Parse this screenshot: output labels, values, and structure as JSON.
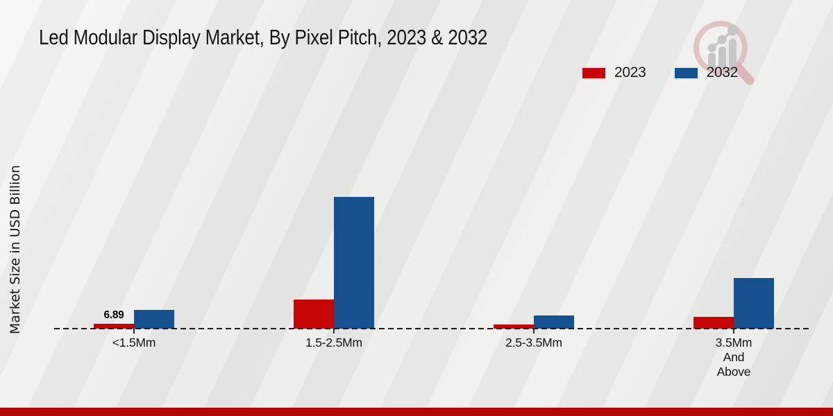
{
  "title": "Led Modular Display Market, By Pixel Pitch, 2023 & 2032",
  "y_axis_label": "Market Size in USD Billion",
  "legend": [
    {
      "label": "2023",
      "color": "#c80505"
    },
    {
      "label": "2032",
      "color": "#15508f"
    }
  ],
  "footer": {
    "color": "#b30707"
  },
  "background_color": "#e9e9e8",
  "logo_icon": "magnifier-bar-chart-watermark",
  "chart_data": {
    "type": "bar",
    "title": "Led Modular Display Market, By Pixel Pitch, 2023 & 2032",
    "xlabel": "",
    "ylabel": "Market Size in USD Billion",
    "categories": [
      "<1.5Mm",
      "1.5-2.5Mm",
      "2.5-3.5Mm",
      "3.5Mm And Above"
    ],
    "category_lines": [
      [
        "<1.5Mm"
      ],
      [
        "1.5-2.5Mm"
      ],
      [
        "2.5-3.5Mm"
      ],
      [
        "3.5Mm",
        "And",
        "Above"
      ]
    ],
    "series": [
      {
        "name": "2023",
        "color": "#c80505",
        "values": [
          6.89,
          41.3,
          5.5,
          16.7
        ]
      },
      {
        "name": "2032",
        "color": "#15508f",
        "values": [
          26.6,
          187.0,
          18.6,
          71.9
        ]
      }
    ],
    "data_labels": [
      {
        "series": "2023",
        "category": "<1.5Mm",
        "text": "6.89"
      }
    ],
    "ylim": [
      0,
      200
    ],
    "grid": "none",
    "axis_style": "dashed-zero-baseline-only",
    "legend_position": "top-right"
  }
}
